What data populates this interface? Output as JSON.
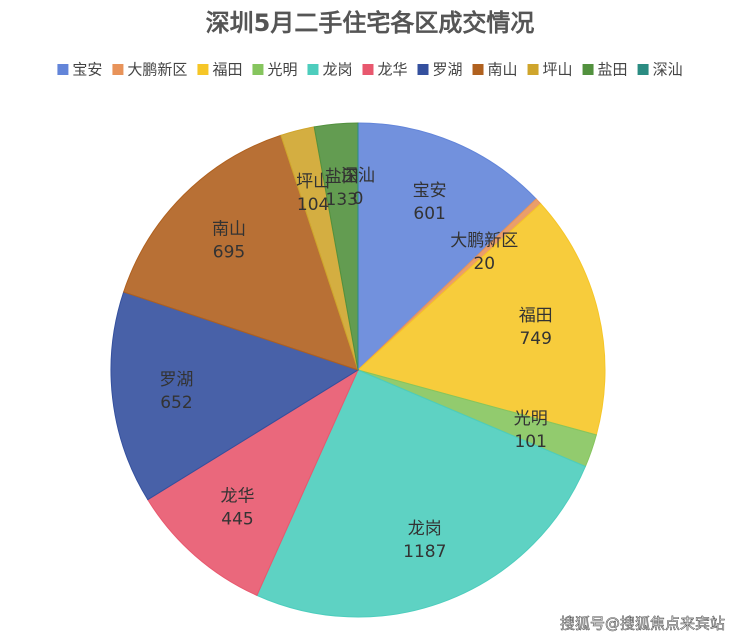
{
  "chart_data": {
    "type": "pie",
    "title": "深圳5月二手住宅各区成交情况",
    "categories": [
      "宝安",
      "大鹏新区",
      "福田",
      "光明",
      "龙岗",
      "龙华",
      "罗湖",
      "南山",
      "坪山",
      "盐田",
      "深汕"
    ],
    "values": [
      601,
      20,
      749,
      101,
      1187,
      445,
      652,
      695,
      104,
      133,
      0
    ],
    "colors": [
      "#6385d9",
      "#e8935a",
      "#f6c627",
      "#86c55e",
      "#4dcdbd",
      "#e8586e",
      "#34509e",
      "#b0611f",
      "#cfa52c",
      "#52913e",
      "#2b8c82"
    ],
    "legend": "top",
    "watermark": "搜狐号@搜狐焦点来宾站"
  }
}
